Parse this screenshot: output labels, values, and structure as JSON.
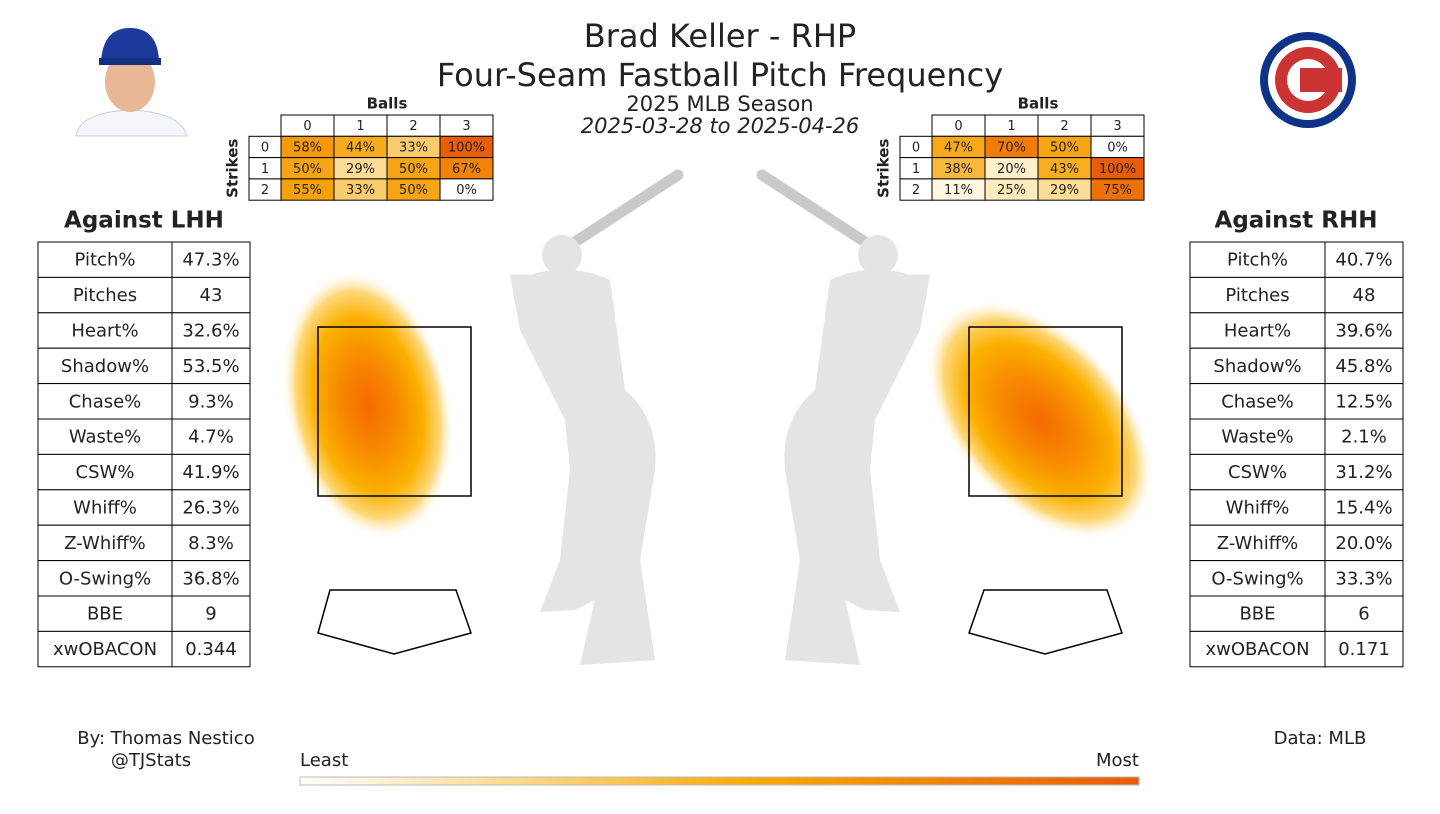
{
  "header": {
    "title": "Brad Keller - RHP",
    "subtitle": "Four-Seam Fastball Pitch Frequency",
    "season": "2025 MLB Season",
    "dates": "2025-03-28 to 2025-04-26"
  },
  "count_tables": [
    {
      "balls_label": "Balls",
      "strikes_label": "Strikes",
      "balls": [
        "0",
        "1",
        "2",
        "3"
      ],
      "strikes": [
        "0",
        "1",
        "2"
      ],
      "cells": [
        [
          "58%",
          "44%",
          "33%",
          "100%"
        ],
        [
          "50%",
          "29%",
          "50%",
          "67%"
        ],
        [
          "55%",
          "33%",
          "50%",
          "0%"
        ]
      ]
    },
    {
      "balls_label": "Balls",
      "strikes_label": "Strikes",
      "balls": [
        "0",
        "1",
        "2",
        "3"
      ],
      "strikes": [
        "0",
        "1",
        "2"
      ],
      "cells": [
        [
          "47%",
          "70%",
          "50%",
          "0%"
        ],
        [
          "38%",
          "20%",
          "43%",
          "100%"
        ],
        [
          "11%",
          "25%",
          "29%",
          "75%"
        ]
      ]
    }
  ],
  "stat_tables": [
    {
      "title": "Against LHH",
      "rows": [
        [
          "Pitch%",
          "47.3%"
        ],
        [
          "Pitches",
          "43"
        ],
        [
          "Heart%",
          "32.6%"
        ],
        [
          "Shadow%",
          "53.5%"
        ],
        [
          "Chase%",
          "9.3%"
        ],
        [
          "Waste%",
          "4.7%"
        ],
        [
          "CSW%",
          "41.9%"
        ],
        [
          "Whiff%",
          "26.3%"
        ],
        [
          "Z-Whiff%",
          "8.3%"
        ],
        [
          "O-Swing%",
          "36.8%"
        ],
        [
          "BBE",
          "9"
        ],
        [
          "xwOBACON",
          "0.344"
        ]
      ]
    },
    {
      "title": "Against RHH",
      "rows": [
        [
          "Pitch%",
          "40.7%"
        ],
        [
          "Pitches",
          "48"
        ],
        [
          "Heart%",
          "39.6%"
        ],
        [
          "Shadow%",
          "45.8%"
        ],
        [
          "Chase%",
          "12.5%"
        ],
        [
          "Waste%",
          "2.1%"
        ],
        [
          "CSW%",
          "31.2%"
        ],
        [
          "Whiff%",
          "15.4%"
        ],
        [
          "Z-Whiff%",
          "20.0%"
        ],
        [
          "O-Swing%",
          "33.3%"
        ],
        [
          "BBE",
          "6"
        ],
        [
          "xwOBACON",
          "0.171"
        ]
      ]
    }
  ],
  "footer": {
    "author": "By: Thomas Nestico",
    "handle": "@TJStats",
    "source": "Data: MLB",
    "scale_min": "Least",
    "scale_max": "Most"
  }
}
